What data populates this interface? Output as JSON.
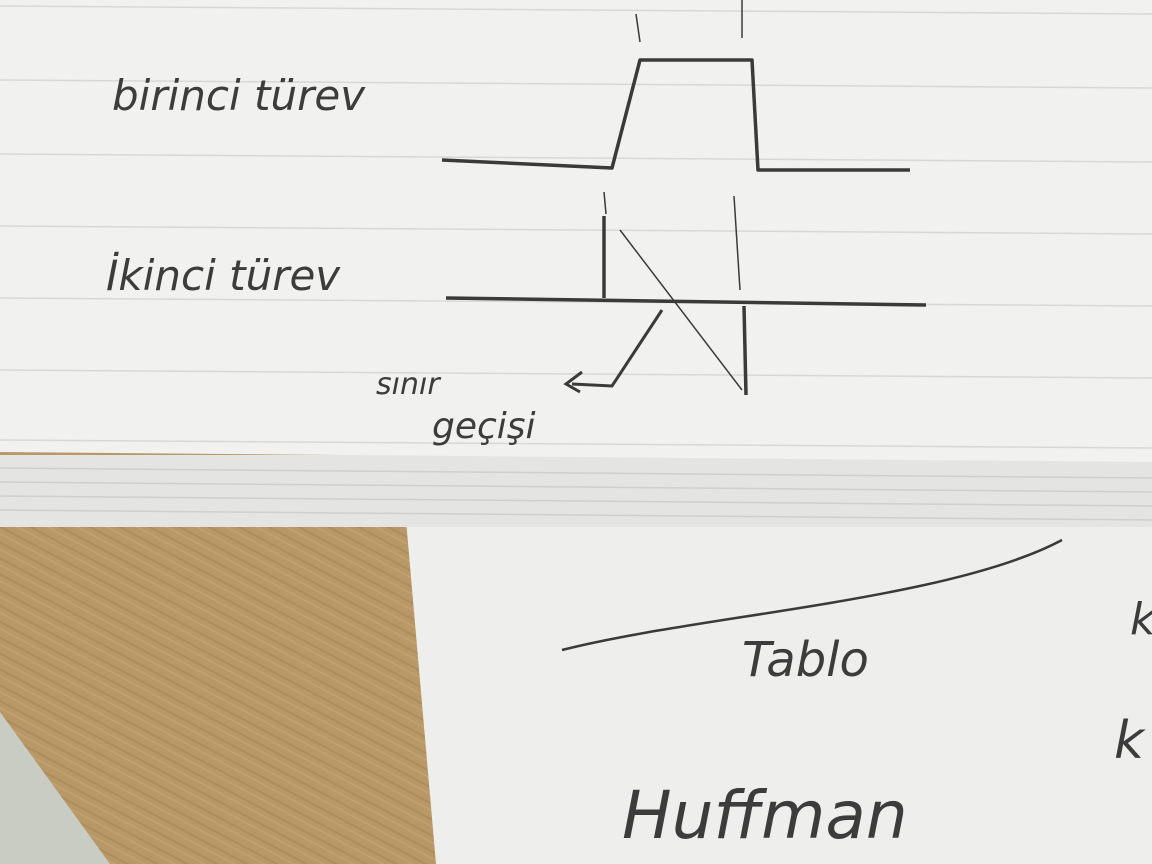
{
  "top_note": {
    "label_first": "birinci türev",
    "label_second": "İkinci türev",
    "annotation_line1": "sınır",
    "annotation_line2": "geçişi"
  },
  "bottom_note": {
    "word_table": "Tablo",
    "word_huffman": "Huffman",
    "edge_letter_1": "k",
    "edge_letter_2": "k"
  },
  "colors": {
    "paper": "#f1f1ef",
    "ink": "#3a3a3a",
    "wood": "#b99868"
  }
}
